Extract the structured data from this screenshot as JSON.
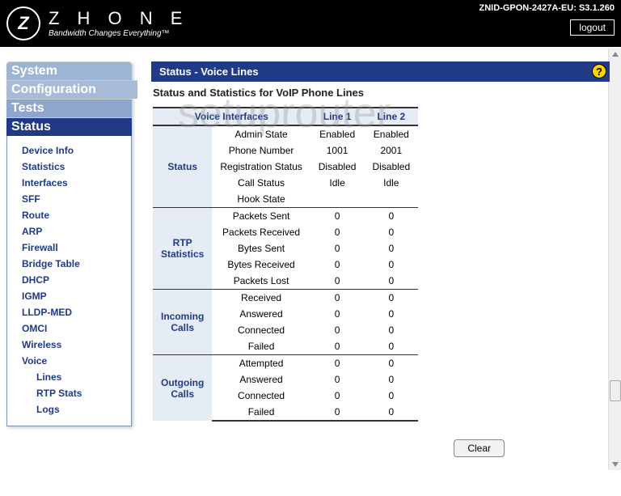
{
  "header": {
    "brand_name": "Z H O N E",
    "brand_tagline": "Bandwidth Changes Everything™",
    "device_id": "ZNID-GPON-2427A-EU: S3.1.260",
    "logout_label": "logout"
  },
  "watermark": "setuprouter",
  "nav": {
    "top": [
      {
        "label": "System",
        "active": false
      },
      {
        "label": "Configuration",
        "active": false
      },
      {
        "label": "Tests",
        "active": false
      },
      {
        "label": "Status",
        "active": true
      }
    ],
    "status_items": [
      "Device Info",
      "Statistics",
      "Interfaces",
      "SFF",
      "Route",
      "ARP",
      "Firewall",
      "Bridge Table",
      "DHCP",
      "IGMP",
      "LLDP-MED",
      "OMCI",
      "Wireless",
      "Voice"
    ],
    "voice_sub": [
      "Lines",
      "RTP Stats",
      "Logs"
    ]
  },
  "page": {
    "title": "Status - Voice Lines",
    "subtitle": "Status and Statistics for VoIP Phone Lines",
    "clear_label": "Clear"
  },
  "table": {
    "headers": {
      "c0": "Voice Interfaces",
      "c1": "Line 1",
      "c2": "Line 2"
    },
    "sections": [
      {
        "label": "Status",
        "rows": [
          {
            "name": "Admin State",
            "l1": "Enabled",
            "l2": "Enabled"
          },
          {
            "name": "Phone Number",
            "l1": "1001",
            "l2": "2001"
          },
          {
            "name": "Registration Status",
            "l1": "Disabled",
            "l2": "Disabled"
          },
          {
            "name": "Call Status",
            "l1": "Idle",
            "l2": "Idle"
          },
          {
            "name": "Hook State",
            "l1": "",
            "l2": ""
          }
        ]
      },
      {
        "label": "RTP Statistics",
        "rows": [
          {
            "name": "Packets Sent",
            "l1": "0",
            "l2": "0"
          },
          {
            "name": "Packets Received",
            "l1": "0",
            "l2": "0"
          },
          {
            "name": "Bytes Sent",
            "l1": "0",
            "l2": "0"
          },
          {
            "name": "Bytes Received",
            "l1": "0",
            "l2": "0"
          },
          {
            "name": "Packets Lost",
            "l1": "0",
            "l2": "0"
          }
        ]
      },
      {
        "label": "Incoming Calls",
        "rows": [
          {
            "name": "Received",
            "l1": "0",
            "l2": "0"
          },
          {
            "name": "Answered",
            "l1": "0",
            "l2": "0"
          },
          {
            "name": "Connected",
            "l1": "0",
            "l2": "0"
          },
          {
            "name": "Failed",
            "l1": "0",
            "l2": "0"
          }
        ]
      },
      {
        "label": "Outgoing Calls",
        "rows": [
          {
            "name": "Attempted",
            "l1": "0",
            "l2": "0"
          },
          {
            "name": "Answered",
            "l1": "0",
            "l2": "0"
          },
          {
            "name": "Connected",
            "l1": "0",
            "l2": "0"
          },
          {
            "name": "Failed",
            "l1": "0",
            "l2": "0"
          }
        ]
      }
    ]
  },
  "colors": {
    "header_bg": "#000000",
    "nav_active": "#203a85",
    "nav_inactive": "#9eb4d4",
    "table_header_bg": "#e6ecf5",
    "help_bg": "#ffd400"
  }
}
